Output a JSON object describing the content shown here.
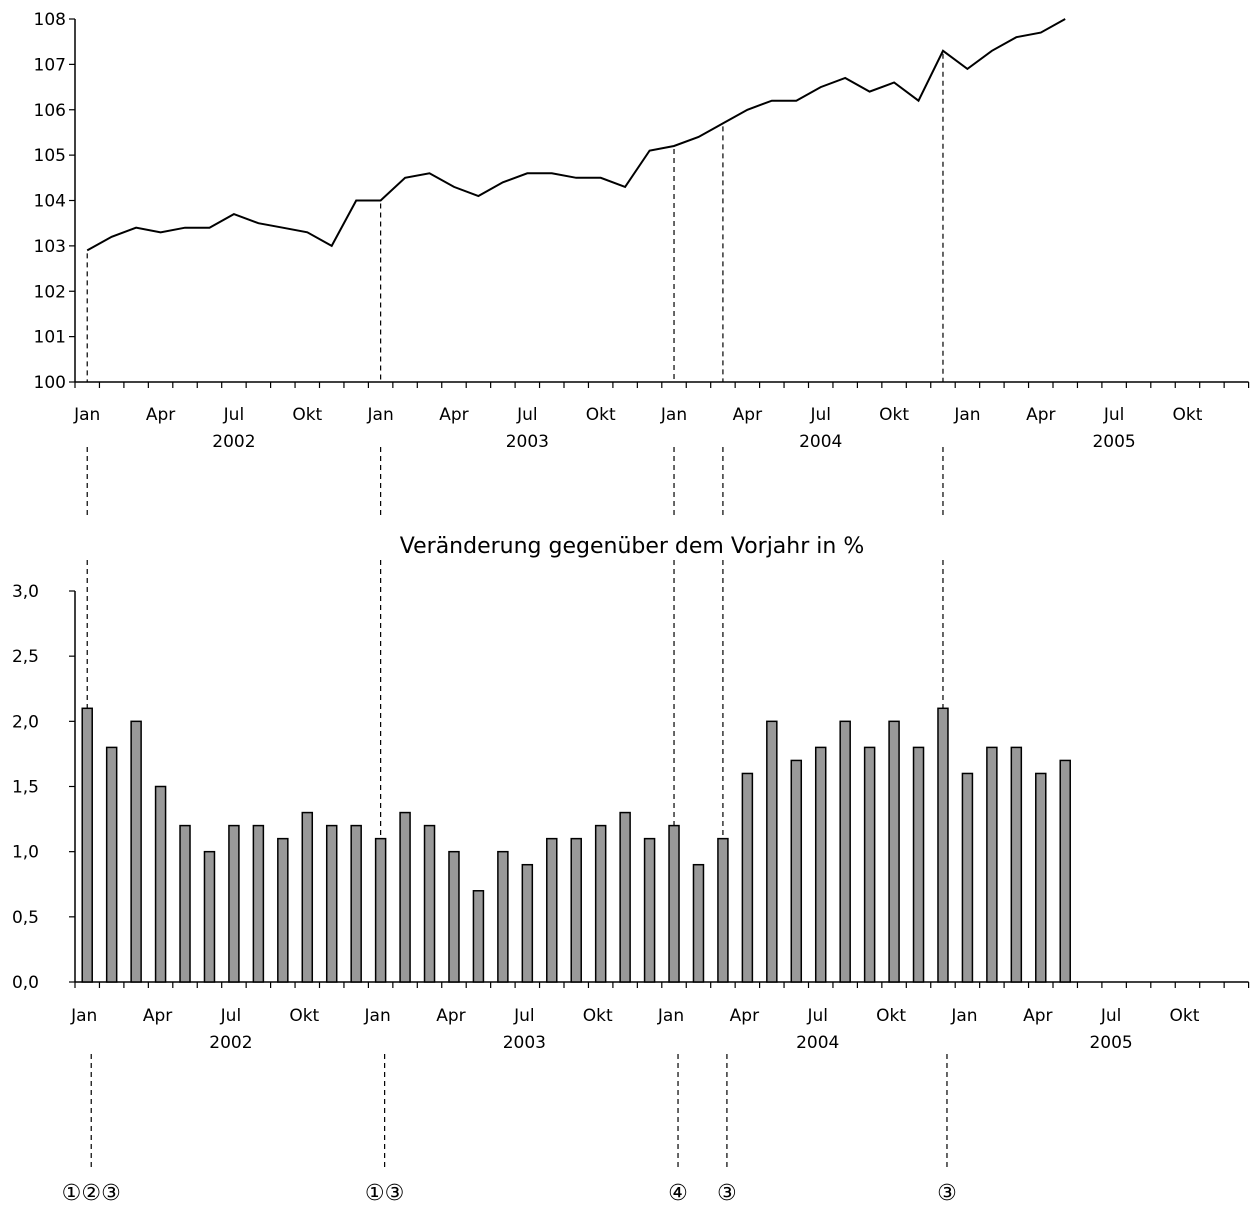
{
  "chart_data": [
    {
      "type": "line",
      "title": "",
      "xlabel": "",
      "ylabel": "",
      "ylim": [
        100,
        108
      ],
      "yticks": [
        "100",
        "101",
        "102",
        "103",
        "104",
        "105",
        "106",
        "107",
        "108"
      ],
      "month_tick_labels": [
        "Jan",
        "Apr",
        "Jul",
        "Okt",
        "Jan",
        "Apr",
        "Jul",
        "Okt",
        "Jan",
        "Apr",
        "Jul",
        "Okt",
        "Jan",
        "Apr",
        "Jul",
        "Okt"
      ],
      "year_labels": [
        "2002",
        "2003",
        "2004",
        "2005"
      ],
      "series": [
        {
          "values": [
            102.9,
            103.2,
            103.4,
            103.3,
            103.4,
            103.4,
            103.7,
            103.5,
            103.4,
            103.3,
            103.0,
            104.0,
            104.0,
            104.5,
            104.6,
            104.3,
            104.1,
            104.4,
            104.6,
            104.6,
            104.5,
            104.5,
            104.3,
            105.1,
            105.2,
            105.4,
            105.7,
            106.0,
            106.2,
            106.2,
            106.5,
            106.7,
            106.4,
            106.6,
            106.2,
            107.3,
            106.9,
            107.3,
            107.6,
            107.7,
            108.0
          ]
        }
      ]
    },
    {
      "type": "bar",
      "title": "Veränderung gegenüber dem Vorjahr in %",
      "xlabel": "",
      "ylabel": "",
      "ylim": [
        0,
        3
      ],
      "yticks": [
        "0,0",
        "0,5",
        "1,0",
        "1,5",
        "2,0",
        "2,5",
        "3,0"
      ],
      "month_tick_labels": [
        "Jan",
        "Apr",
        "Jul",
        "Okt",
        "Jan",
        "Apr",
        "Jul",
        "Okt",
        "Jan",
        "Apr",
        "Jul",
        "Okt",
        "Jan",
        "Apr",
        "Jul",
        "Okt"
      ],
      "year_labels": [
        "2002",
        "2003",
        "2004",
        "2005"
      ],
      "series": [
        {
          "values": [
            2.1,
            1.8,
            2.0,
            1.5,
            1.2,
            1.0,
            1.2,
            1.2,
            1.1,
            1.3,
            1.2,
            1.2,
            1.1,
            1.3,
            1.2,
            1.0,
            0.7,
            1.0,
            0.9,
            1.1,
            1.1,
            1.2,
            1.3,
            1.1,
            1.2,
            0.9,
            1.1,
            1.6,
            2.0,
            1.7,
            1.8,
            2.0,
            1.8,
            2.0,
            1.8,
            2.1,
            1.6,
            1.8,
            1.8,
            1.6,
            1.7
          ]
        }
      ],
      "colors": {
        "bar_fill": "#999999",
        "bar_stroke": "#000000"
      }
    }
  ],
  "event_markers": [
    {
      "month_index": 0,
      "label": "①②③"
    },
    {
      "month_index": 12,
      "label": "①③"
    },
    {
      "month_index": 24,
      "label": "④"
    },
    {
      "month_index": 26,
      "label": "③"
    },
    {
      "month_index": 35,
      "label": "③"
    }
  ]
}
